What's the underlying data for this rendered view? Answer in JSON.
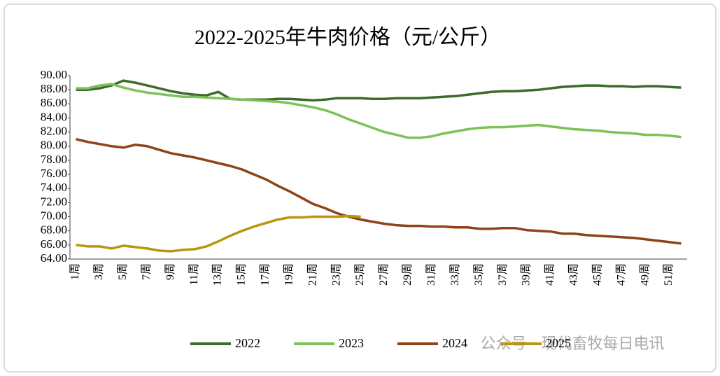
{
  "chart_data": {
    "type": "line",
    "title": "2022-2025年牛肉价格（元/公斤）",
    "categories": [
      "1周",
      null,
      "3周",
      null,
      "5周",
      null,
      "7周",
      null,
      "9周",
      null,
      "11周",
      null,
      "13周",
      null,
      "15周",
      null,
      "17周",
      null,
      "19周",
      null,
      "21周",
      null,
      "23周",
      null,
      "25周",
      null,
      "27周",
      null,
      "29周",
      null,
      "31周",
      null,
      "33周",
      null,
      "35周",
      null,
      "37周",
      null,
      "39周",
      null,
      "41周",
      null,
      "43周",
      null,
      "45周",
      null,
      "47周",
      null,
      "49周",
      null,
      "51周",
      null
    ],
    "series": [
      {
        "name": "2022",
        "color": "#3d6b2b",
        "values": [
          88.0,
          88.0,
          88.2,
          88.6,
          89.3,
          89.0,
          88.6,
          88.2,
          87.8,
          87.5,
          87.3,
          87.2,
          87.7,
          86.7,
          86.6,
          86.6,
          86.6,
          86.7,
          86.7,
          86.6,
          86.5,
          86.6,
          86.8,
          86.8,
          86.8,
          86.7,
          86.7,
          86.8,
          86.8,
          86.8,
          86.9,
          87.0,
          87.1,
          87.3,
          87.5,
          87.7,
          87.8,
          87.8,
          87.9,
          88.0,
          88.2,
          88.4,
          88.5,
          88.6,
          88.6,
          88.5,
          88.5,
          88.4,
          88.5,
          88.5,
          88.4,
          88.3
        ]
      },
      {
        "name": "2023",
        "color": "#7dc256",
        "values": [
          88.2,
          88.2,
          88.6,
          88.8,
          88.3,
          87.9,
          87.6,
          87.4,
          87.2,
          87.0,
          87.0,
          86.9,
          86.8,
          86.7,
          86.6,
          86.5,
          86.4,
          86.3,
          86.1,
          85.8,
          85.5,
          85.1,
          84.5,
          83.8,
          83.2,
          82.6,
          82.0,
          81.6,
          81.2,
          81.2,
          81.4,
          81.8,
          82.1,
          82.4,
          82.6,
          82.7,
          82.7,
          82.8,
          82.9,
          83.0,
          82.8,
          82.6,
          82.4,
          82.3,
          82.2,
          82.0,
          81.9,
          81.8,
          81.6,
          81.6,
          81.5,
          81.3
        ]
      },
      {
        "name": "2024",
        "color": "#8e4318",
        "values": [
          81.0,
          80.6,
          80.3,
          80.0,
          79.8,
          80.2,
          80.0,
          79.5,
          79.0,
          78.7,
          78.4,
          78.0,
          77.6,
          77.2,
          76.7,
          76.0,
          75.3,
          74.4,
          73.6,
          72.7,
          71.8,
          71.2,
          70.5,
          70.0,
          69.6,
          69.3,
          69.0,
          68.8,
          68.7,
          68.7,
          68.6,
          68.6,
          68.5,
          68.5,
          68.3,
          68.3,
          68.4,
          68.4,
          68.1,
          68.0,
          67.9,
          67.6,
          67.6,
          67.4,
          67.3,
          67.2,
          67.1,
          67.0,
          66.8,
          66.6,
          66.4,
          66.2
        ]
      },
      {
        "name": "2025",
        "color": "#b8970f",
        "values": [
          66.0,
          65.8,
          65.8,
          65.5,
          65.9,
          65.7,
          65.5,
          65.2,
          65.1,
          65.3,
          65.4,
          65.8,
          66.5,
          67.3,
          68.0,
          68.6,
          69.1,
          69.6,
          69.9,
          69.9,
          70.0,
          70.0,
          70.0,
          70.1,
          70.0,
          null,
          null,
          null,
          null,
          null,
          null,
          null,
          null,
          null,
          null,
          null,
          null,
          null,
          null,
          null,
          null,
          null,
          null,
          null,
          null,
          null,
          null,
          null,
          null,
          null,
          null,
          null
        ]
      }
    ],
    "ylim": [
      64,
      90
    ],
    "yticks": [
      {
        "value": 64,
        "label": "64.00"
      },
      {
        "value": 66,
        "label": "66.00"
      },
      {
        "value": 68,
        "label": "68.00"
      },
      {
        "value": 70,
        "label": "70.00"
      },
      {
        "value": 72,
        "label": "72.00"
      },
      {
        "value": 74,
        "label": "74.00"
      },
      {
        "value": 76,
        "label": "76.00"
      },
      {
        "value": 78,
        "label": "78.00"
      },
      {
        "value": 80,
        "label": "80.00"
      },
      {
        "value": 82,
        "label": "82.00"
      },
      {
        "value": 84,
        "label": "84.00"
      },
      {
        "value": 86,
        "label": "86.00"
      },
      {
        "value": 88,
        "label": "88.00"
      },
      {
        "value": 90,
        "label": "90.00"
      }
    ],
    "grid": false,
    "legend": "bottom",
    "watermark": "公众号 · 现代畜牧每日电讯"
  }
}
